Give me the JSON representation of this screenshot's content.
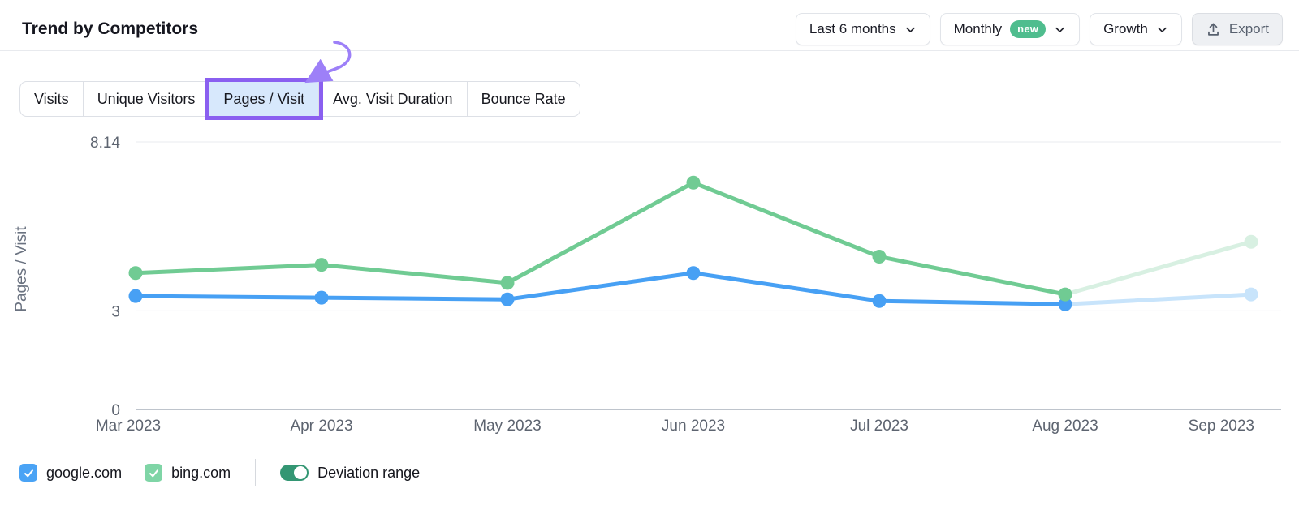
{
  "header": {
    "title": "Trend by Competitors",
    "filters": [
      {
        "label": "Last 6 months"
      },
      {
        "label": "Monthly",
        "badge": "new",
        "badge_color": "#4fbd8e"
      },
      {
        "label": "Growth"
      }
    ],
    "export_label": "Export"
  },
  "tabs": {
    "items": [
      {
        "label": "Visits",
        "active": false
      },
      {
        "label": "Unique Visitors",
        "active": false
      },
      {
        "label": "Pages / Visit",
        "active": true
      },
      {
        "label": "Avg. Visit Duration",
        "active": false
      },
      {
        "label": "Bounce Rate",
        "active": false
      }
    ],
    "active_bg": "#d7e8fc",
    "active_outline_color": "#8a5ff0"
  },
  "annotation": {
    "type": "curved-arrow",
    "color": "#9d80f8",
    "points_to": "Pages / Visit tab"
  },
  "chart_data": {
    "type": "line",
    "ylabel": "Pages / Visit",
    "x": [
      "Mar 2023",
      "Apr 2023",
      "May 2023",
      "Jun 2023",
      "Jul 2023",
      "Aug 2023",
      "Sep 2023"
    ],
    "yticks": [
      {
        "value": 8.14,
        "label": "8.14"
      },
      {
        "value": 3,
        "label": "3"
      },
      {
        "value": 0,
        "label": "0"
      }
    ],
    "ylim": [
      0,
      8.14
    ],
    "grid": "horizontal",
    "legend_position": "bottom",
    "projection_start_index": 5,
    "projection_note": "Aug 2023 to Sep 2023 segment and Sep points are rendered faded (deviation range)",
    "series": [
      {
        "name": "google.com",
        "color": "#47a0f4",
        "faded_color": "#c8e4fb",
        "values": [
          3.45,
          3.4,
          3.35,
          4.15,
          3.3,
          3.2,
          3.5
        ]
      },
      {
        "name": "bing.com",
        "color": "#70cb93",
        "faded_color": "#d8f0e2",
        "values": [
          4.15,
          4.4,
          3.85,
          6.9,
          4.65,
          3.5,
          5.1
        ]
      }
    ]
  },
  "legend": {
    "checkboxes": [
      {
        "label": "google.com",
        "checked": true,
        "color": "#4aa3f5"
      },
      {
        "label": "bing.com",
        "checked": true,
        "color": "#7fd5a6"
      }
    ],
    "toggle": {
      "label": "Deviation range",
      "on": true,
      "color": "#339673"
    }
  }
}
